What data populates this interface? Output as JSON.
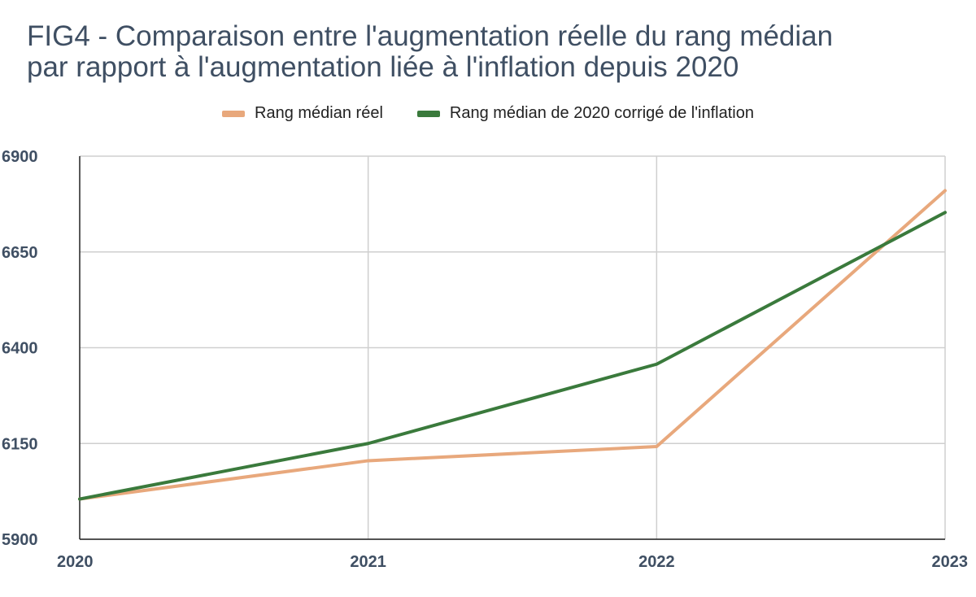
{
  "chart_data": {
    "type": "line",
    "title_lines": [
      "FIG4 - Comparaison entre l'augmentation réelle du rang médian",
      "par rapport à l'augmentation liée à l'inflation depuis 2020"
    ],
    "x": [
      "2020",
      "2021",
      "2022",
      "2023"
    ],
    "ylim": [
      5900,
      6900
    ],
    "yticks": [
      "5900",
      "6150",
      "6400",
      "6650",
      "6900"
    ],
    "grid": true,
    "legend_position": "top",
    "series": [
      {
        "name": "Rang médian réel",
        "color": "#e8a87c",
        "values": [
          6005,
          6105,
          6142,
          6810
        ]
      },
      {
        "name": "Rang médian de 2020 corrigé de l'inflation",
        "color": "#3a7a3c",
        "values": [
          6005,
          6150,
          6357,
          6753
        ]
      }
    ]
  }
}
